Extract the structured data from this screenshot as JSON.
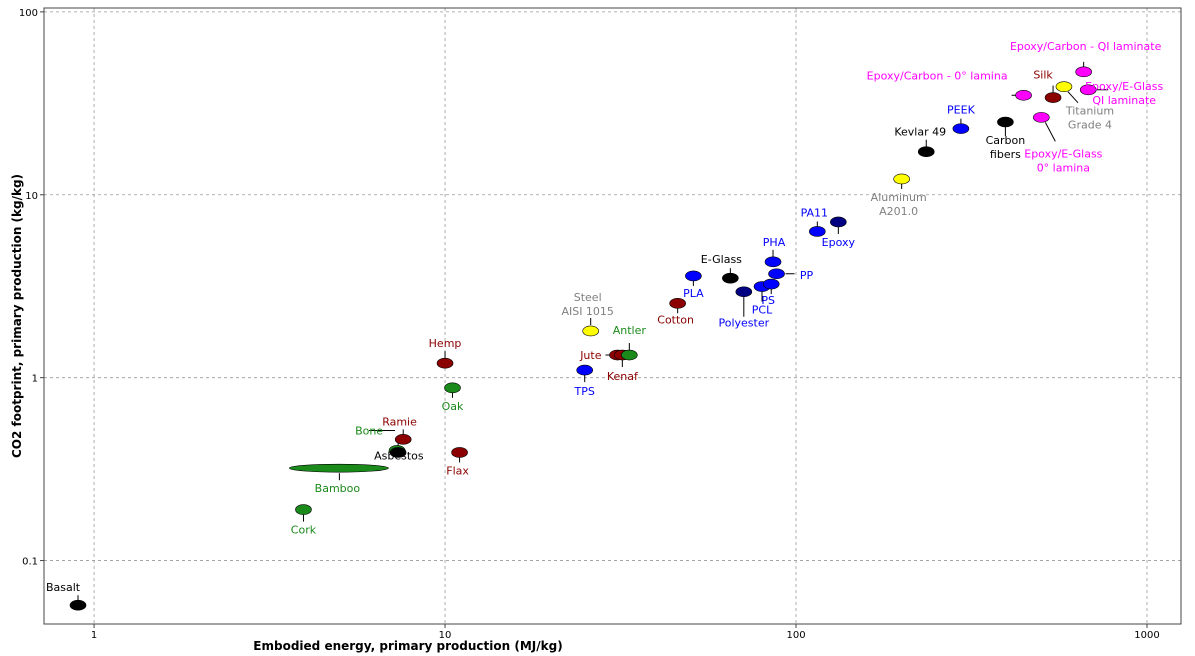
{
  "chart_data": {
    "type": "scatter",
    "xlabel": "Embodied energy, primary production (MJ/kg)",
    "ylabel": "CO2 footprint, primary production (kg/kg)",
    "xscale": "log",
    "yscale": "log",
    "xlim": [
      0.72,
      1250
    ],
    "ylim": [
      0.045,
      105
    ],
    "xticks": [
      {
        "value": 1,
        "label": "1"
      },
      {
        "value": 10,
        "label": "10"
      },
      {
        "value": 100,
        "label": "100"
      },
      {
        "value": 1000,
        "label": "1000"
      }
    ],
    "yticks": [
      {
        "value": 0.1,
        "label": "0.1"
      },
      {
        "value": 1,
        "label": "1"
      },
      {
        "value": 10,
        "label": "10"
      },
      {
        "value": 100,
        "label": "100"
      }
    ],
    "grid": true,
    "colors": {
      "black": "#000000",
      "green": "#1a8a1a",
      "darkred": "#8b0000",
      "blue": "#0000ff",
      "navy": "#000080",
      "yellow": "#ffff00",
      "magenta": "#ff00ff",
      "gray": "#808080"
    },
    "points": [
      {
        "label": "Basalt",
        "x": 0.9,
        "y": 0.057,
        "color": "#000000",
        "text_color": "#000000"
      },
      {
        "label": "Cork",
        "x": 3.95,
        "y": 0.19,
        "color": "#1a8a1a",
        "text_color": "#1a8a1a"
      },
      {
        "label": "Bamboo",
        "x": 5.0,
        "y": 0.32,
        "x_range": [
          3.6,
          6.9
        ],
        "color": "#1a8a1a",
        "text_color": "#1a8a1a"
      },
      {
        "label": "Bone",
        "x": 7.3,
        "y": 0.4,
        "color": "#1a8a1a",
        "text_color": "#1a8a1a"
      },
      {
        "label": "Asbestos",
        "x": 7.35,
        "y": 0.39,
        "color": "#000000",
        "text_color": "#000000"
      },
      {
        "label": "Ramie",
        "x": 7.6,
        "y": 0.46,
        "color": "#8b0000",
        "text_color": "#8b0000"
      },
      {
        "label": "Hemp",
        "x": 10.0,
        "y": 1.2,
        "color": "#8b0000",
        "text_color": "#8b0000"
      },
      {
        "label": "Oak",
        "x": 10.5,
        "y": 0.88,
        "color": "#1a8a1a",
        "text_color": "#1a8a1a"
      },
      {
        "label": "Flax",
        "x": 11.0,
        "y": 0.39,
        "color": "#8b0000",
        "text_color": "#8b0000"
      },
      {
        "label": "TPS",
        "x": 25.0,
        "y": 1.1,
        "color": "#0000ff",
        "text_color": "#0000ff"
      },
      {
        "label": "Steel AISI 1015",
        "label_lines": [
          "Steel",
          "AISI 1015"
        ],
        "x": 26.0,
        "y": 1.8,
        "color": "#ffff00",
        "text_color": "#808080"
      },
      {
        "label": "Jute",
        "x": 31.0,
        "y": 1.33,
        "color": "#8b0000",
        "text_color": "#8b0000"
      },
      {
        "label": "Kenaf",
        "x": 32.0,
        "y": 1.33,
        "color": "#8b0000",
        "text_color": "#8b0000"
      },
      {
        "label": "Antler",
        "x": 33.5,
        "y": 1.33,
        "color": "#1a8a1a",
        "text_color": "#1a8a1a"
      },
      {
        "label": "Cotton",
        "x": 46.0,
        "y": 2.55,
        "color": "#8b0000",
        "text_color": "#8b0000"
      },
      {
        "label": "PLA",
        "x": 51.0,
        "y": 3.6,
        "color": "#0000ff",
        "text_color": "#0000ff"
      },
      {
        "label": "E-Glass",
        "x": 65.0,
        "y": 3.5,
        "color": "#000000",
        "text_color": "#000000"
      },
      {
        "label": "Polyester",
        "x": 71.0,
        "y": 2.95,
        "color": "#000080",
        "text_color": "#0000ff"
      },
      {
        "label": "PCL",
        "x": 80.0,
        "y": 3.15,
        "color": "#0000ff",
        "text_color": "#0000ff"
      },
      {
        "label": "PS",
        "x": 85.0,
        "y": 3.25,
        "color": "#0000ff",
        "text_color": "#0000ff"
      },
      {
        "label": "PHA",
        "x": 86.0,
        "y": 4.3,
        "color": "#0000ff",
        "text_color": "#0000ff"
      },
      {
        "label": "PP",
        "x": 88.0,
        "y": 3.7,
        "color": "#0000ff",
        "text_color": "#0000ff"
      },
      {
        "label": "PA11",
        "x": 115.0,
        "y": 6.3,
        "color": "#0000ff",
        "text_color": "#0000ff"
      },
      {
        "label": "Epoxy",
        "x": 132.0,
        "y": 7.1,
        "color": "#000080",
        "text_color": "#0000ff"
      },
      {
        "label": "Aluminum A201.0",
        "label_lines": [
          "Aluminum",
          "A201.0"
        ],
        "x": 200.0,
        "y": 12.2,
        "color": "#ffff00",
        "text_color": "#808080"
      },
      {
        "label": "Kevlar 49",
        "x": 235.0,
        "y": 17.2,
        "color": "#000000",
        "text_color": "#000000"
      },
      {
        "label": "PEEK",
        "x": 295.0,
        "y": 23.0,
        "color": "#0000ff",
        "text_color": "#0000ff"
      },
      {
        "label": "Carbon fibers",
        "label_lines": [
          "Carbon",
          "fibers"
        ],
        "x": 395.0,
        "y": 25.0,
        "color": "#000000",
        "text_color": "#000000"
      },
      {
        "label": "Epoxy/Carbon - 0° lamina",
        "x": 445.0,
        "y": 35.0,
        "color": "#ff00ff",
        "text_color": "#ff00ff"
      },
      {
        "label": "Epoxy/E-Glass 0° lamina",
        "label_lines": [
          "Epoxy/E-Glass",
          "0° lamina"
        ],
        "x": 500.0,
        "y": 26.5,
        "color": "#ff00ff",
        "text_color": "#ff00ff"
      },
      {
        "label": "Silk",
        "x": 540.0,
        "y": 34.0,
        "color": "#8b0000",
        "text_color": "#8b0000"
      },
      {
        "label": "Titanium Grade 4",
        "label_lines": [
          "Titanium",
          "Grade 4"
        ],
        "x": 580.0,
        "y": 39.0,
        "color": "#ffff00",
        "text_color": "#808080"
      },
      {
        "label": "Epoxy/Carbon - QI laminate",
        "x": 660.0,
        "y": 47.0,
        "color": "#ff00ff",
        "text_color": "#ff00ff"
      },
      {
        "label": "Epoxy/E-Glass QI laminate",
        "label_lines": [
          "Epoxy/E-Glass",
          "QI laminate"
        ],
        "x": 680.0,
        "y": 37.5,
        "color": "#ff00ff",
        "text_color": "#ff00ff"
      }
    ]
  }
}
